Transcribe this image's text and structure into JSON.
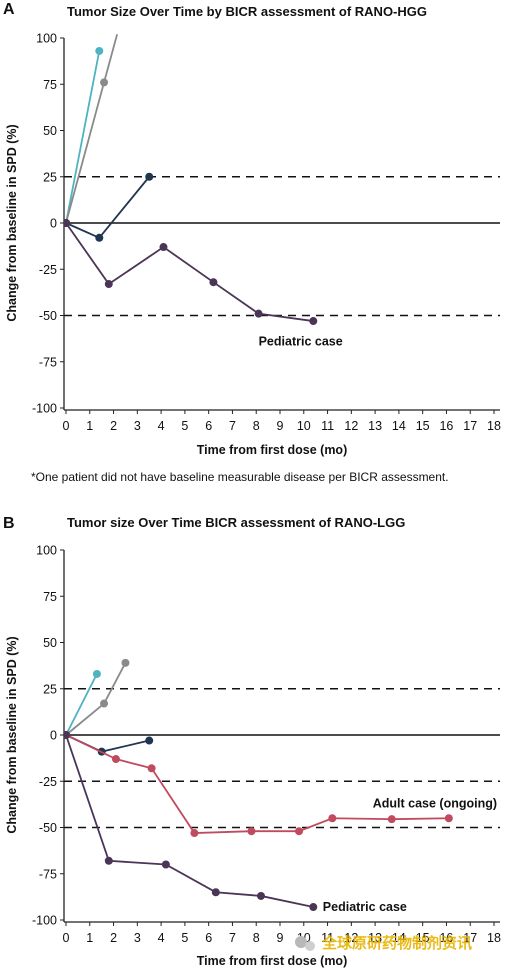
{
  "footnote": "*One patient did not have baseline measurable disease per BICR assessment.",
  "watermark": "全球原研药物制剂资讯",
  "chart_data": [
    {
      "panel": "A",
      "type": "line",
      "title": "Tumor Size Over Time by BICR assessment of RANO-HGG",
      "xlabel": "Time from first dose (mo)",
      "ylabel": "Change from baseline in SPD (%)",
      "xlim": [
        0,
        18
      ],
      "ylim": [
        -100,
        100
      ],
      "xticks": [
        0,
        1,
        2,
        3,
        4,
        5,
        6,
        7,
        8,
        9,
        10,
        11,
        12,
        13,
        14,
        15,
        16,
        17,
        18
      ],
      "yticks": [
        100,
        75,
        50,
        25,
        0,
        -25,
        -50,
        -75,
        -100
      ],
      "ref_lines": [
        25,
        -50
      ],
      "zero_line": 0,
      "series": [
        {
          "color": "#4fb3c2",
          "points": [
            [
              0,
              0
            ],
            [
              1.4,
              93
            ]
          ]
        },
        {
          "color": "#8a8a8a",
          "points": [
            [
              0,
              0
            ],
            [
              1.6,
              76
            ]
          ],
          "extends_to": [
            2.15,
            102
          ]
        },
        {
          "color": "#1f3550",
          "points": [
            [
              0,
              0
            ],
            [
              1.4,
              -8
            ],
            [
              3.5,
              25
            ]
          ]
        },
        {
          "color": "#4a3557",
          "points": [
            [
              0,
              0
            ],
            [
              1.8,
              -33
            ],
            [
              4.1,
              -13
            ],
            [
              6.2,
              -32
            ],
            [
              8.1,
              -49
            ],
            [
              10.4,
              -53
            ]
          ]
        }
      ],
      "annotations": [
        {
          "text": "Pediatric case",
          "x": 8.1,
          "y": -64
        }
      ]
    },
    {
      "panel": "B",
      "type": "line",
      "title": "Tumor size Over Time BICR assessment of RANO-LGG",
      "xlabel": "Time from first dose (mo)",
      "ylabel": "Change from baseline in SPD (%)",
      "xlim": [
        0,
        18
      ],
      "ylim": [
        -100,
        100
      ],
      "xticks": [
        0,
        1,
        2,
        3,
        4,
        5,
        6,
        7,
        8,
        9,
        10,
        11,
        12,
        13,
        14,
        15,
        16,
        17,
        18
      ],
      "yticks": [
        100,
        75,
        50,
        25,
        0,
        -25,
        -50,
        -75,
        -100
      ],
      "ref_lines": [
        25,
        -25,
        -50
      ],
      "zero_line": 0,
      "series": [
        {
          "color": "#4fb3c2",
          "points": [
            [
              0,
              0
            ],
            [
              1.3,
              33
            ]
          ]
        },
        {
          "color": "#8a8a8a",
          "points": [
            [
              0,
              0
            ],
            [
              1.6,
              17
            ],
            [
              2.5,
              39
            ]
          ]
        },
        {
          "color": "#1f3550",
          "points": [
            [
              0,
              0
            ],
            [
              1.5,
              -9
            ],
            [
              3.5,
              -3
            ]
          ]
        },
        {
          "color": "#c04a5e",
          "points": [
            [
              0,
              0
            ],
            [
              2.1,
              -13
            ],
            [
              3.6,
              -18
            ],
            [
              5.4,
              -53
            ],
            [
              7.8,
              -52
            ],
            [
              9.8,
              -52
            ],
            [
              11.2,
              -45
            ],
            [
              13.7,
              -45.5
            ],
            [
              16.1,
              -45
            ]
          ]
        },
        {
          "color": "#4a3557",
          "points": [
            [
              0,
              0
            ],
            [
              1.8,
              -68
            ],
            [
              4.2,
              -70
            ],
            [
              6.3,
              -85
            ],
            [
              8.2,
              -87
            ],
            [
              10.4,
              -93
            ]
          ]
        }
      ],
      "annotations": [
        {
          "text": "Adult case (ongoing)",
          "x": 12.9,
          "y": -37
        },
        {
          "text": "Pediatric case",
          "x": 10.8,
          "y": -93
        }
      ]
    }
  ]
}
